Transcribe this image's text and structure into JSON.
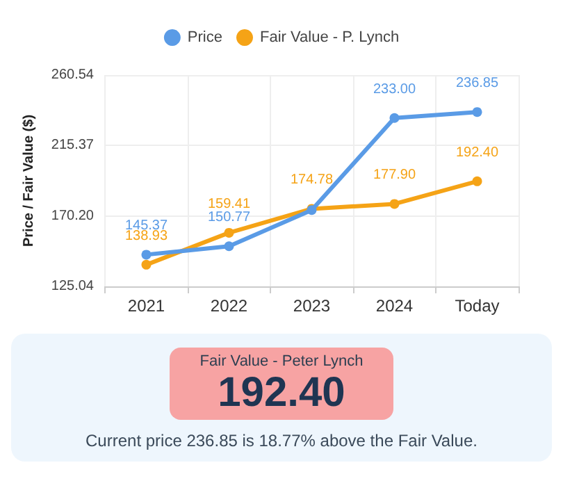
{
  "chart_data": {
    "type": "line",
    "ylabel": "Price / Fair Value ($)",
    "categories": [
      "2021",
      "2022",
      "2023",
      "2024",
      "Today"
    ],
    "series": [
      {
        "name": "Price",
        "color": "#5a9be6",
        "values": [
          145.37,
          150.77,
          174,
          233.0,
          236.85
        ],
        "value_labels": [
          "145.37",
          "150.77",
          null,
          "233.00",
          "236.85"
        ]
      },
      {
        "name": "Fair Value - P. Lynch",
        "color": "#f5a316",
        "values": [
          138.93,
          159.41,
          174.78,
          177.9,
          192.4
        ],
        "value_labels": [
          "138.93",
          "159.41",
          "174.78",
          "177.90",
          "192.40"
        ]
      }
    ],
    "ylim": [
      125.04,
      260.54
    ],
    "yticks": [
      125.04,
      {
        "value": 170.2,
        "label": "170.20"
      },
      215.37,
      260.54
    ],
    "grid": true,
    "legend": "top",
    "marker": "circle",
    "line_style": "solid",
    "annotations": [
      "Fair Value - Peter Lynch",
      "192.40",
      "Current price 236.85 is 18.77% above the Fair Value."
    ]
  }
}
